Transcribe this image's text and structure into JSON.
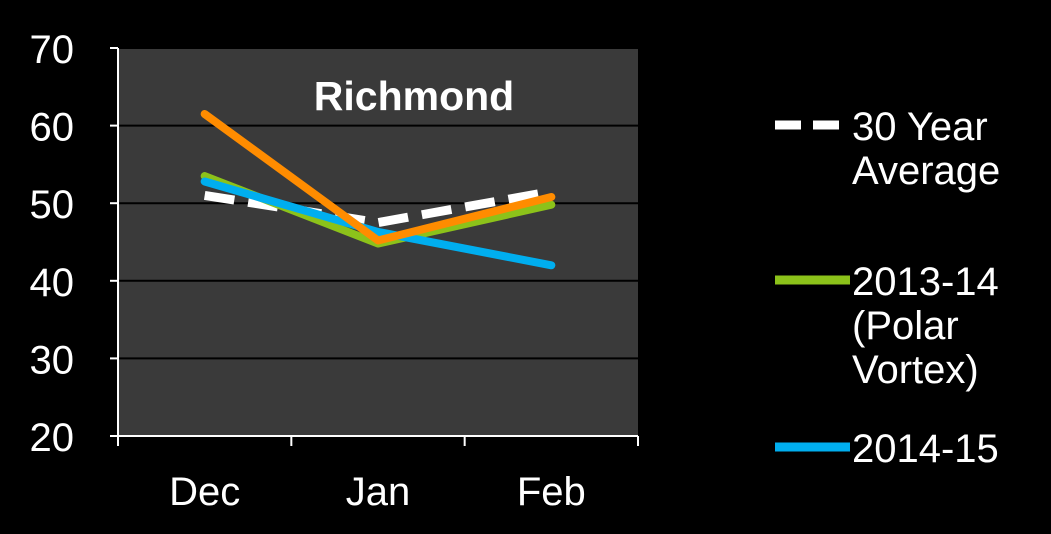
{
  "chart_data": {
    "type": "line",
    "title": "Richmond",
    "xlabel": "",
    "ylabel": "",
    "categories": [
      "Dec",
      "Jan",
      "Feb"
    ],
    "ylim": [
      20,
      70
    ],
    "yticks": [
      20,
      30,
      40,
      50,
      60,
      70
    ],
    "grid": "horizontal",
    "legend_position": "right",
    "series": [
      {
        "name": "30 Year Average",
        "legend_lines": [
          "30 Year",
          "Average"
        ],
        "values": [
          51,
          47.5,
          51.5
        ],
        "color": "#FFFFFF",
        "dash": true
      },
      {
        "name": "2013-14 (Polar Vortex)",
        "legend_lines": [
          "2013-14",
          "(Polar",
          "Vortex)"
        ],
        "values": [
          53.5,
          44.8,
          49.8
        ],
        "color": "#8CC21A",
        "dash": false
      },
      {
        "name": "2014-15",
        "legend_lines": [
          "2014-15"
        ],
        "values": [
          52.8,
          46.3,
          42
        ],
        "color": "#00AEEF",
        "dash": false
      },
      {
        "name": "",
        "legend_lines": [],
        "values": [
          61.5,
          45.2,
          50.8
        ],
        "color": "#FF8C00",
        "dash": false
      }
    ],
    "background": {
      "page": "#000000",
      "plot": "#3A3A3A",
      "axis": "#FFFFFF",
      "grid": "#000000",
      "title_color": "#FFFFFF"
    }
  }
}
